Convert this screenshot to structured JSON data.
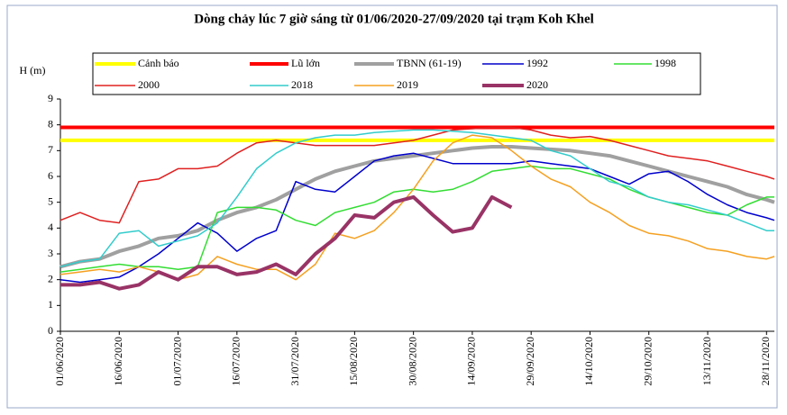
{
  "chart_data": {
    "type": "line",
    "title": "Dòng chảy lúc 7 giờ sáng từ 01/06/2020-27/09/2020 tại trạm Koh Khel",
    "y_label": "H (m)",
    "x": [
      "01/06/2020",
      "06/06/2020",
      "11/06/2020",
      "16/06/2020",
      "21/06/2020",
      "26/06/2020",
      "01/07/2020",
      "06/07/2020",
      "11/07/2020",
      "16/07/2020",
      "21/07/2020",
      "26/07/2020",
      "31/07/2020",
      "05/08/2020",
      "10/08/2020",
      "15/08/2020",
      "20/08/2020",
      "25/08/2020",
      "30/08/2020",
      "04/09/2020",
      "09/09/2020",
      "14/09/2020",
      "19/09/2020",
      "24/09/2020",
      "29/09/2020",
      "04/10/2020",
      "09/10/2020",
      "14/10/2020",
      "19/10/2020",
      "24/10/2020",
      "29/10/2020",
      "03/11/2020",
      "08/11/2020",
      "13/11/2020",
      "18/11/2020",
      "23/11/2020",
      "28/11/2020",
      "30/11/2020"
    ],
    "xlim": [
      "01/06/2020",
      "30/11/2020"
    ],
    "xticks": [
      "01/06/2020",
      "16/06/2020",
      "01/07/2020",
      "16/07/2020",
      "31/07/2020",
      "15/08/2020",
      "30/08/2020",
      "14/09/2020",
      "29/09/2020",
      "14/10/2020",
      "29/10/2020",
      "13/11/2020",
      "28/11/2020"
    ],
    "ylim": [
      0,
      9
    ],
    "yticks": [
      0,
      1,
      2,
      3,
      4,
      5,
      6,
      7,
      8,
      9
    ],
    "series": [
      {
        "name": "Cảnh báo",
        "color": "#ffff00",
        "line_width": 4,
        "values": [
          7.4,
          7.4,
          7.4,
          7.4,
          7.4,
          7.4,
          7.4,
          7.4,
          7.4,
          7.4,
          7.4,
          7.4,
          7.4,
          7.4,
          7.4,
          7.4,
          7.4,
          7.4,
          7.4,
          7.4,
          7.4,
          7.4,
          7.4,
          7.4,
          7.4,
          7.4,
          7.4,
          7.4,
          7.4,
          7.4,
          7.4,
          7.4,
          7.4,
          7.4,
          7.4,
          7.4,
          7.4,
          7.4
        ]
      },
      {
        "name": "Lũ lớn",
        "color": "#ff0000",
        "line_width": 4,
        "values": [
          7.9,
          7.9,
          7.9,
          7.9,
          7.9,
          7.9,
          7.9,
          7.9,
          7.9,
          7.9,
          7.9,
          7.9,
          7.9,
          7.9,
          7.9,
          7.9,
          7.9,
          7.9,
          7.9,
          7.9,
          7.9,
          7.9,
          7.9,
          7.9,
          7.9,
          7.9,
          7.9,
          7.9,
          7.9,
          7.9,
          7.9,
          7.9,
          7.9,
          7.9,
          7.9,
          7.9,
          7.9,
          7.9
        ]
      },
      {
        "name": "TBNN (61-19)",
        "color": "#a0a0a0",
        "line_width": 4,
        "values": [
          2.5,
          2.7,
          2.8,
          3.1,
          3.3,
          3.6,
          3.7,
          3.9,
          4.3,
          4.6,
          4.8,
          5.1,
          5.5,
          5.9,
          6.2,
          6.4,
          6.6,
          6.7,
          6.8,
          6.9,
          7.0,
          7.1,
          7.15,
          7.15,
          7.1,
          7.05,
          7.0,
          6.9,
          6.8,
          6.6,
          6.4,
          6.2,
          6.0,
          5.8,
          5.6,
          5.3,
          5.1,
          5.0
        ]
      },
      {
        "name": "1992",
        "color": "#0000cc",
        "line_width": 1.5,
        "values": [
          2.0,
          1.9,
          2.0,
          2.1,
          2.5,
          3.0,
          3.6,
          4.2,
          3.8,
          3.1,
          3.6,
          3.9,
          5.8,
          5.5,
          5.4,
          6.0,
          6.6,
          6.8,
          6.9,
          6.7,
          6.5,
          6.5,
          6.5,
          6.5,
          6.6,
          6.5,
          6.4,
          6.3,
          6.0,
          5.7,
          6.1,
          6.2,
          5.8,
          5.3,
          4.9,
          4.6,
          4.4,
          4.3
        ]
      },
      {
        "name": "1998",
        "color": "#33dd33",
        "line_width": 1.5,
        "values": [
          2.3,
          2.4,
          2.5,
          2.6,
          2.5,
          2.5,
          2.4,
          2.5,
          4.6,
          4.8,
          4.8,
          4.7,
          4.3,
          4.1,
          4.6,
          4.8,
          5.0,
          5.4,
          5.5,
          5.4,
          5.5,
          5.8,
          6.2,
          6.3,
          6.4,
          6.3,
          6.3,
          6.1,
          5.9,
          5.5,
          5.2,
          5.0,
          4.8,
          4.6,
          4.5,
          4.9,
          5.2,
          5.2
        ]
      },
      {
        "name": "2000",
        "color": "#e02020",
        "line_width": 1.5,
        "values": [
          4.3,
          4.6,
          4.3,
          4.2,
          5.8,
          5.9,
          6.3,
          6.3,
          6.4,
          6.9,
          7.3,
          7.4,
          7.3,
          7.2,
          7.2,
          7.2,
          7.2,
          7.3,
          7.4,
          7.6,
          7.8,
          7.85,
          7.9,
          7.9,
          7.8,
          7.6,
          7.5,
          7.55,
          7.4,
          7.2,
          7.0,
          6.8,
          6.7,
          6.6,
          6.4,
          6.2,
          6.0,
          5.9
        ]
      },
      {
        "name": "2018",
        "color": "#33cccc",
        "line_width": 1.5,
        "values": [
          2.5,
          2.7,
          2.8,
          3.8,
          3.9,
          3.3,
          3.5,
          3.7,
          4.2,
          5.2,
          6.3,
          6.9,
          7.3,
          7.5,
          7.6,
          7.6,
          7.7,
          7.75,
          7.8,
          7.8,
          7.75,
          7.7,
          7.6,
          7.5,
          7.4,
          7.0,
          6.8,
          6.3,
          5.8,
          5.6,
          5.2,
          5.0,
          4.9,
          4.7,
          4.5,
          4.2,
          3.9,
          3.9
        ]
      },
      {
        "name": "2019",
        "color": "#f5a020",
        "line_width": 1.5,
        "values": [
          2.2,
          2.3,
          2.4,
          2.3,
          2.5,
          2.3,
          2.0,
          2.2,
          2.9,
          2.6,
          2.4,
          2.4,
          2.0,
          2.6,
          3.8,
          3.6,
          3.9,
          4.6,
          5.5,
          6.6,
          7.3,
          7.6,
          7.5,
          7.0,
          6.4,
          5.9,
          5.6,
          5.0,
          4.6,
          4.1,
          3.8,
          3.7,
          3.5,
          3.2,
          3.1,
          2.9,
          2.8,
          2.9
        ]
      },
      {
        "name": "2020",
        "color": "#993366",
        "line_width": 4,
        "values": [
          1.8,
          1.8,
          1.9,
          1.65,
          1.8,
          2.3,
          2.0,
          2.5,
          2.5,
          2.2,
          2.3,
          2.6,
          2.2,
          3.0,
          3.6,
          4.5,
          4.4,
          5.0,
          5.2,
          4.5,
          3.85,
          4.0,
          5.2,
          4.8,
          null,
          null,
          null,
          null,
          null,
          null,
          null,
          null,
          null,
          null,
          null,
          null,
          null,
          null
        ]
      }
    ]
  }
}
